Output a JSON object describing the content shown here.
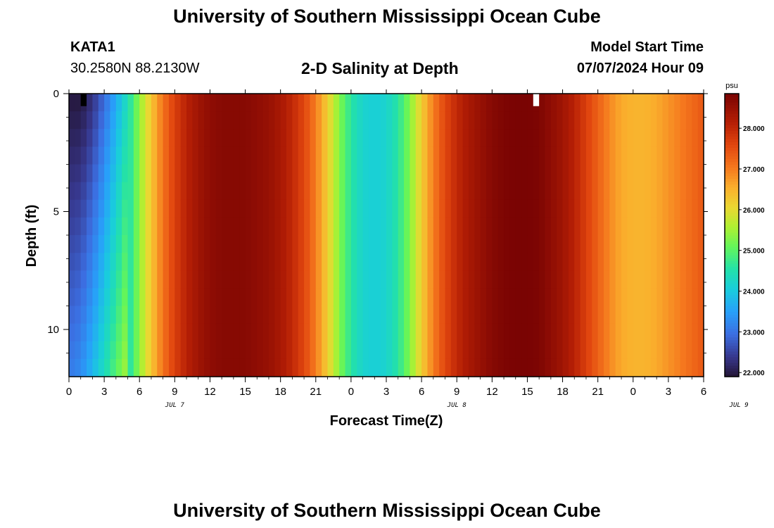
{
  "header": {
    "title": "University of Southern Mississippi Ocean Cube",
    "station_id": "KATA1",
    "coordinates": "30.2580N  88.2130W",
    "subtitle": "2-D Salinity at Depth",
    "model_start_label": "Model Start Time",
    "model_start_value": "07/07/2024 Hour 09"
  },
  "footer": {
    "title": "University of Southern Mississippi Ocean Cube"
  },
  "chart_data": {
    "type": "heatmap",
    "title": "2-D Salinity at Depth",
    "xlabel": "Forecast Time(Z)",
    "ylabel": "Depth (ft)",
    "units": "psu",
    "x_tick_labels": [
      "0",
      "3",
      "6",
      "9",
      "12",
      "15",
      "18",
      "21",
      "0",
      "3",
      "6",
      "9",
      "12",
      "15",
      "18",
      "21",
      "0",
      "3",
      "6"
    ],
    "date_labels": [
      {
        "text": "JUL 7",
        "at_hour": 9
      },
      {
        "text": "JUL 8",
        "at_hour": 33
      },
      {
        "text": "JUL 9",
        "at_hour": 57
      }
    ],
    "y_ticks": [
      0,
      5,
      10
    ],
    "y_range": [
      0,
      12
    ],
    "x_range_hours": [
      0,
      54
    ],
    "colorbar": {
      "ticks": [
        "22.000",
        "23.000",
        "24.000",
        "25.000",
        "26.000",
        "27.000",
        "28.000"
      ],
      "range": [
        21.9,
        28.85
      ]
    },
    "surface_profile": [
      [
        0,
        22.0
      ],
      [
        1,
        22.0
      ],
      [
        2,
        22.3
      ],
      [
        3,
        22.9
      ],
      [
        4,
        23.6
      ],
      [
        5,
        24.4
      ],
      [
        6,
        25.4
      ],
      [
        7,
        26.3
      ],
      [
        8,
        27.1
      ],
      [
        9,
        27.7
      ],
      [
        10,
        28.1
      ],
      [
        11,
        28.4
      ],
      [
        12,
        28.6
      ],
      [
        13,
        28.7
      ],
      [
        14,
        28.7
      ],
      [
        15,
        28.7
      ],
      [
        16,
        28.6
      ],
      [
        17,
        28.5
      ],
      [
        18,
        28.3
      ],
      [
        19,
        28.0
      ],
      [
        20,
        27.6
      ],
      [
        21,
        27.0
      ],
      [
        22,
        26.2
      ],
      [
        23,
        25.3
      ],
      [
        24,
        24.6
      ],
      [
        25,
        24.2
      ],
      [
        26,
        24.1
      ],
      [
        27,
        24.2
      ],
      [
        28,
        24.6
      ],
      [
        29,
        25.3
      ],
      [
        30,
        26.2
      ],
      [
        31,
        27.0
      ],
      [
        32,
        27.6
      ],
      [
        33,
        28.0
      ],
      [
        34,
        28.3
      ],
      [
        35,
        28.5
      ],
      [
        36,
        28.7
      ],
      [
        37,
        28.8
      ],
      [
        38,
        28.85
      ],
      [
        39,
        28.85
      ],
      [
        40,
        28.8
      ],
      [
        41,
        28.6
      ],
      [
        42,
        28.4
      ],
      [
        43,
        28.1
      ],
      [
        44,
        27.7
      ],
      [
        45,
        27.3
      ],
      [
        46,
        26.9
      ],
      [
        47,
        26.6
      ],
      [
        48,
        26.5
      ],
      [
        49,
        26.5
      ],
      [
        50,
        26.6
      ],
      [
        51,
        26.8
      ],
      [
        52,
        27.0
      ],
      [
        53,
        27.2
      ],
      [
        54,
        27.4
      ]
    ],
    "early_depth_profile": {
      "hours": [
        0,
        1,
        2,
        3,
        4,
        5
      ],
      "surface": [
        21.95,
        21.95,
        22.3,
        22.9,
        23.6,
        24.4
      ],
      "bottom": [
        23.1,
        23.3,
        23.8,
        24.4,
        25.0,
        25.6
      ]
    },
    "missing_cells": [
      {
        "hour": 1,
        "depth_from": 0,
        "depth_to": 0.5,
        "color": "#000000"
      },
      {
        "hour": 39.5,
        "depth_from": 0,
        "depth_to": 0.5,
        "color": "#ffffff"
      }
    ]
  }
}
